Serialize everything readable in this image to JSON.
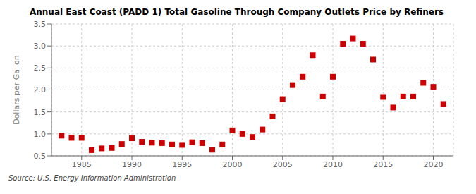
{
  "chart_data": {
    "type": "scatter",
    "title": "Annual East Coast (PADD 1) Total Gasoline Through Company Outlets Price by Refiners",
    "ylabel": "Dollars per Gallon",
    "annotations": [
      "Source: U.S. Energy Information Administration"
    ],
    "x": [
      1983,
      1984,
      1985,
      1986,
      1987,
      1988,
      1989,
      1990,
      1991,
      1992,
      1993,
      1994,
      1995,
      1996,
      1997,
      1998,
      1999,
      2000,
      2001,
      2002,
      2003,
      2004,
      2005,
      2006,
      2007,
      2008,
      2009,
      2010,
      2011,
      2012,
      2013,
      2014,
      2015,
      2016,
      2017,
      2018,
      2019,
      2020,
      2021
    ],
    "values": [
      0.96,
      0.91,
      0.91,
      0.63,
      0.67,
      0.68,
      0.77,
      0.9,
      0.82,
      0.8,
      0.79,
      0.76,
      0.75,
      0.81,
      0.79,
      0.64,
      0.76,
      1.08,
      1.0,
      0.93,
      1.1,
      1.4,
      1.79,
      2.11,
      2.3,
      2.79,
      1.85,
      2.3,
      3.05,
      3.17,
      3.05,
      2.69,
      1.84,
      1.6,
      1.85,
      1.85,
      2.16,
      2.07,
      1.68
    ],
    "color": "#cc0000",
    "marker": "square",
    "xlim": [
      1982,
      2022
    ],
    "ylim": [
      0.5,
      3.5
    ],
    "xticks": [
      1985,
      1990,
      1995,
      2000,
      2005,
      2010,
      2015,
      2020
    ],
    "yticks": [
      0.5,
      {
        "value": 1,
        "label": "1.0"
      },
      1.5,
      {
        "value": 2,
        "label": "2.0"
      },
      2.5,
      {
        "value": 3,
        "label": "3.0"
      },
      3.5
    ],
    "grid": true
  }
}
